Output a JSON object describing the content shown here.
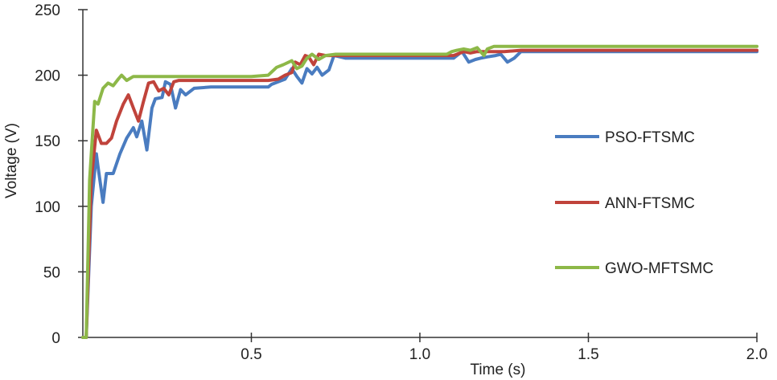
{
  "chart_data": {
    "type": "line",
    "title": "",
    "xlabel": "Time (s)",
    "ylabel": "Voltage (V)",
    "xlim": [
      0,
      2.0
    ],
    "ylim": [
      0,
      250
    ],
    "x_ticks": [
      "0.5",
      "1.0",
      "1.5",
      "2.0"
    ],
    "x_tick_values": [
      0.5,
      1.0,
      1.5,
      2.0
    ],
    "y_ticks": [
      "0",
      "50",
      "100",
      "150",
      "200",
      "250"
    ],
    "y_tick_values": [
      0,
      50,
      100,
      150,
      200,
      250
    ],
    "grid": false,
    "legend_position": "right",
    "series": [
      {
        "name": "PSO-FTSMC",
        "color": "#4a7cc0",
        "points": [
          [
            0,
            0
          ],
          [
            0.01,
            0
          ],
          [
            0.025,
            100
          ],
          [
            0.04,
            140
          ],
          [
            0.045,
            130
          ],
          [
            0.06,
            103
          ],
          [
            0.07,
            125
          ],
          [
            0.09,
            125
          ],
          [
            0.11,
            140
          ],
          [
            0.13,
            152
          ],
          [
            0.15,
            160
          ],
          [
            0.16,
            153
          ],
          [
            0.175,
            165
          ],
          [
            0.19,
            143
          ],
          [
            0.205,
            175
          ],
          [
            0.215,
            182
          ],
          [
            0.235,
            183
          ],
          [
            0.245,
            195
          ],
          [
            0.26,
            193
          ],
          [
            0.275,
            175
          ],
          [
            0.29,
            189
          ],
          [
            0.305,
            185
          ],
          [
            0.33,
            190
          ],
          [
            0.38,
            191
          ],
          [
            0.45,
            191
          ],
          [
            0.55,
            191
          ],
          [
            0.56,
            193
          ],
          [
            0.58,
            195
          ],
          [
            0.6,
            197
          ],
          [
            0.62,
            205
          ],
          [
            0.635,
            199
          ],
          [
            0.65,
            194
          ],
          [
            0.665,
            205
          ],
          [
            0.68,
            201
          ],
          [
            0.695,
            206
          ],
          [
            0.71,
            200
          ],
          [
            0.73,
            204
          ],
          [
            0.745,
            215
          ],
          [
            0.78,
            213
          ],
          [
            0.9,
            213
          ],
          [
            1.0,
            213
          ],
          [
            1.1,
            213
          ],
          [
            1.125,
            218
          ],
          [
            1.145,
            210
          ],
          [
            1.165,
            212
          ],
          [
            1.18,
            213
          ],
          [
            1.2,
            214
          ],
          [
            1.225,
            215
          ],
          [
            1.24,
            216
          ],
          [
            1.26,
            210
          ],
          [
            1.28,
            213
          ],
          [
            1.3,
            218
          ],
          [
            1.4,
            218
          ],
          [
            1.6,
            218
          ],
          [
            1.8,
            218
          ],
          [
            2.0,
            218
          ]
        ]
      },
      {
        "name": "ANN-FTSMC",
        "color": "#c0433b",
        "points": [
          [
            0,
            0
          ],
          [
            0.01,
            0
          ],
          [
            0.025,
            120
          ],
          [
            0.04,
            158
          ],
          [
            0.055,
            148
          ],
          [
            0.07,
            148
          ],
          [
            0.085,
            152
          ],
          [
            0.1,
            165
          ],
          [
            0.12,
            178
          ],
          [
            0.135,
            185
          ],
          [
            0.15,
            175
          ],
          [
            0.165,
            165
          ],
          [
            0.18,
            180
          ],
          [
            0.195,
            194
          ],
          [
            0.21,
            195
          ],
          [
            0.225,
            188
          ],
          [
            0.24,
            190
          ],
          [
            0.255,
            185
          ],
          [
            0.27,
            195
          ],
          [
            0.285,
            196
          ],
          [
            0.32,
            196
          ],
          [
            0.4,
            196
          ],
          [
            0.55,
            196
          ],
          [
            0.58,
            197
          ],
          [
            0.6,
            200
          ],
          [
            0.62,
            202
          ],
          [
            0.63,
            210
          ],
          [
            0.645,
            208
          ],
          [
            0.66,
            215
          ],
          [
            0.67,
            214
          ],
          [
            0.685,
            208
          ],
          [
            0.7,
            216
          ],
          [
            0.72,
            215
          ],
          [
            0.75,
            215
          ],
          [
            0.9,
            215
          ],
          [
            1.0,
            215
          ],
          [
            1.1,
            215
          ],
          [
            1.13,
            218
          ],
          [
            1.15,
            217
          ],
          [
            1.17,
            218
          ],
          [
            1.2,
            218
          ],
          [
            1.25,
            218
          ],
          [
            1.3,
            219
          ],
          [
            1.5,
            219
          ],
          [
            1.8,
            219
          ],
          [
            2.0,
            219
          ]
        ]
      },
      {
        "name": "GWO-MFTSMC",
        "color": "#8db848",
        "points": [
          [
            0,
            0
          ],
          [
            0.01,
            0
          ],
          [
            0.02,
            120
          ],
          [
            0.035,
            180
          ],
          [
            0.045,
            178
          ],
          [
            0.06,
            190
          ],
          [
            0.075,
            194
          ],
          [
            0.09,
            192
          ],
          [
            0.105,
            197
          ],
          [
            0.115,
            200
          ],
          [
            0.13,
            196
          ],
          [
            0.15,
            199
          ],
          [
            0.2,
            199
          ],
          [
            0.3,
            199
          ],
          [
            0.4,
            199
          ],
          [
            0.5,
            199
          ],
          [
            0.55,
            200
          ],
          [
            0.575,
            206
          ],
          [
            0.595,
            208
          ],
          [
            0.62,
            211
          ],
          [
            0.635,
            205
          ],
          [
            0.65,
            207
          ],
          [
            0.665,
            213
          ],
          [
            0.68,
            216
          ],
          [
            0.7,
            212
          ],
          [
            0.72,
            215
          ],
          [
            0.75,
            216
          ],
          [
            0.9,
            216
          ],
          [
            1.0,
            216
          ],
          [
            1.08,
            216
          ],
          [
            1.095,
            218
          ],
          [
            1.11,
            219
          ],
          [
            1.13,
            220
          ],
          [
            1.15,
            219
          ],
          [
            1.17,
            221
          ],
          [
            1.19,
            215
          ],
          [
            1.2,
            220
          ],
          [
            1.22,
            222
          ],
          [
            1.3,
            222
          ],
          [
            1.5,
            222
          ],
          [
            1.8,
            222
          ],
          [
            2.0,
            222
          ]
        ]
      }
    ]
  }
}
